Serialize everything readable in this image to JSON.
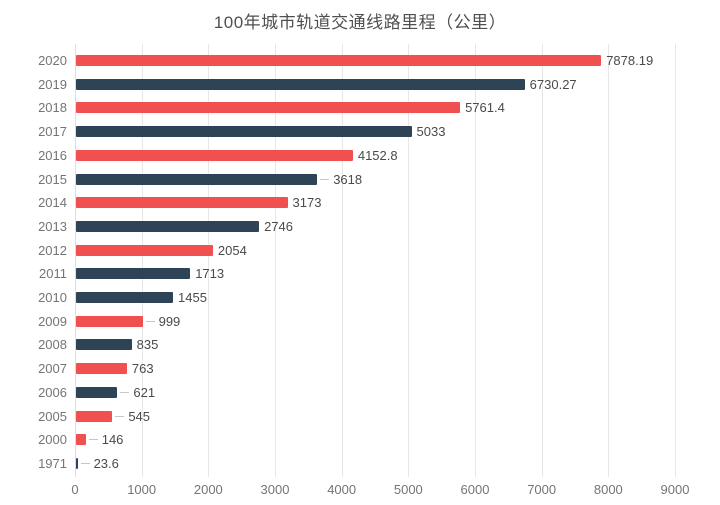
{
  "title": "100年城市轨道交通线路里程（公里）",
  "colors": {
    "bar_red": "#f05050",
    "bar_navy": "#2e4355",
    "gridline": "#e7e7e7",
    "axis_text": "#757575",
    "value_text": "#4a4a4a",
    "title_text": "#4f4f4f",
    "leader_line": "#c6c6c6",
    "background": "#ffffff"
  },
  "chart_data": {
    "type": "bar",
    "orientation": "horizontal",
    "title": "100年城市轨道交通线路里程（公里）",
    "xlabel": "",
    "ylabel": "",
    "categories": [
      "2020",
      "2019",
      "2018",
      "2017",
      "2016",
      "2015",
      "2014",
      "2013",
      "2012",
      "2011",
      "2010",
      "2009",
      "2008",
      "2007",
      "2006",
      "2005",
      "2000",
      "1971"
    ],
    "values": [
      7878.19,
      6730.27,
      5761.4,
      5033,
      4152.8,
      3618,
      3173,
      2746,
      2054,
      1713,
      1455,
      999,
      835,
      763,
      621,
      545,
      146,
      23.6
    ],
    "value_labels": [
      "7878.19",
      "6730.27",
      "5761.4",
      "5033",
      "4152.8",
      "3618",
      "3173",
      "2746",
      "2054",
      "1713",
      "1455",
      "999",
      "835",
      "763",
      "621",
      "545",
      "146",
      "23.6"
    ],
    "bar_colors": [
      "#f05050",
      "#2e4355",
      "#f05050",
      "#2e4355",
      "#f05050",
      "#2e4355",
      "#f05050",
      "#2e4355",
      "#f05050",
      "#2e4355",
      "#2e4355",
      "#f05050",
      "#2e4355",
      "#f05050",
      "#2e4355",
      "#f05050",
      "#f05050",
      "#2e4355"
    ],
    "leader_dash": [
      false,
      false,
      false,
      false,
      false,
      true,
      false,
      false,
      false,
      false,
      false,
      true,
      false,
      false,
      true,
      true,
      true,
      true
    ],
    "x_ticks": [
      0,
      1000,
      2000,
      3000,
      4000,
      5000,
      6000,
      7000,
      8000,
      9000
    ],
    "x_tick_labels": [
      "0",
      "1000",
      "2000",
      "3000",
      "4000",
      "5000",
      "6000",
      "7000",
      "8000",
      "9000"
    ],
    "xlim": [
      0,
      9000
    ],
    "grid": true,
    "legend": "none"
  }
}
